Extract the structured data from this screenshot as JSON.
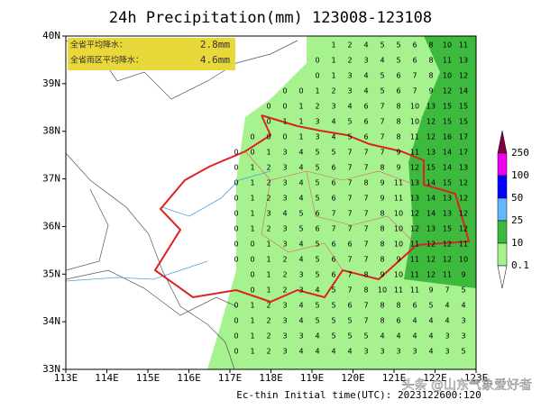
{
  "title": "24h Precipitation(mm) 123008-123108",
  "info": {
    "row1_label": "全省平均降水：",
    "row1_value": "2.8mm",
    "row2_label": "全省雨区平均降水：",
    "row2_value": "4.6mm"
  },
  "x_ticks": [
    "113E",
    "114E",
    "115E",
    "116E",
    "117E",
    "118E",
    "119E",
    "120E",
    "121E",
    "122E",
    "123E"
  ],
  "y_ticks": [
    "40N",
    "39N",
    "38N",
    "37N",
    "36N",
    "35N",
    "34N",
    "33N"
  ],
  "legend": {
    "levels": [
      {
        "label": "250",
        "color": "#f000f0"
      },
      {
        "label": "100",
        "color": "#0000ff"
      },
      {
        "label": "50",
        "color": "#61b8ff"
      },
      {
        "label": "25",
        "color": "#3dba3d"
      },
      {
        "label": "10",
        "color": "#a6f28f"
      },
      {
        "label": "0.1",
        "color": "#ffffff"
      }
    ],
    "top_color": "#800040"
  },
  "grid": {
    "rows": [
      [
        null,
        null,
        null,
        null,
        null,
        null,
        1,
        2,
        4,
        5,
        5,
        6,
        8,
        10,
        11
      ],
      [
        null,
        null,
        null,
        null,
        null,
        0,
        1,
        2,
        3,
        4,
        5,
        6,
        8,
        11,
        13
      ],
      [
        null,
        null,
        null,
        null,
        null,
        0,
        1,
        3,
        4,
        5,
        6,
        7,
        8,
        10,
        12
      ],
      [
        null,
        null,
        null,
        0,
        0,
        1,
        2,
        3,
        4,
        5,
        6,
        7,
        9,
        12,
        14
      ],
      [
        null,
        null,
        0,
        0,
        1,
        2,
        3,
        4,
        6,
        7,
        8,
        10,
        13,
        15,
        15
      ],
      [
        null,
        null,
        0,
        1,
        1,
        3,
        4,
        5,
        6,
        7,
        8,
        10,
        12,
        15,
        15
      ],
      [
        null,
        0,
        0,
        0,
        1,
        3,
        4,
        5,
        6,
        7,
        8,
        11,
        12,
        16,
        17
      ],
      [
        0,
        0,
        1,
        3,
        4,
        5,
        5,
        7,
        7,
        7,
        9,
        11,
        13,
        14,
        17
      ],
      [
        0,
        1,
        2,
        3,
        4,
        5,
        6,
        7,
        7,
        8,
        9,
        12,
        15,
        14,
        13
      ],
      [
        0,
        1,
        2,
        3,
        4,
        5,
        6,
        7,
        8,
        9,
        11,
        13,
        14,
        15,
        12
      ],
      [
        0,
        1,
        2,
        3,
        4,
        5,
        6,
        7,
        7,
        9,
        11,
        13,
        14,
        13,
        12
      ],
      [
        0,
        1,
        3,
        4,
        5,
        6,
        7,
        7,
        7,
        8,
        10,
        12,
        14,
        13,
        12
      ],
      [
        0,
        1,
        2,
        3,
        5,
        6,
        7,
        7,
        7,
        8,
        10,
        12,
        13,
        15,
        12
      ],
      [
        0,
        0,
        1,
        3,
        4,
        5,
        6,
        6,
        7,
        8,
        10,
        11,
        12,
        12,
        11
      ],
      [
        0,
        0,
        1,
        2,
        4,
        5,
        6,
        7,
        7,
        8,
        9,
        11,
        12,
        12,
        10
      ],
      [
        null,
        0,
        1,
        2,
        3,
        5,
        6,
        7,
        8,
        9,
        10,
        11,
        12,
        11,
        9
      ],
      [
        null,
        0,
        1,
        2,
        3,
        4,
        5,
        7,
        8,
        10,
        11,
        11,
        9,
        7,
        5
      ],
      [
        0,
        1,
        2,
        3,
        4,
        5,
        5,
        6,
        7,
        8,
        8,
        6,
        5,
        4,
        4
      ],
      [
        0,
        1,
        2,
        3,
        4,
        5,
        5,
        5,
        7,
        8,
        6,
        4,
        4,
        4,
        3
      ],
      [
        0,
        1,
        2,
        3,
        3,
        4,
        5,
        5,
        5,
        4,
        4,
        4,
        4,
        3,
        3
      ],
      [
        0,
        1,
        2,
        3,
        4,
        4,
        4,
        4,
        3,
        3,
        3,
        3,
        4,
        3,
        5
      ]
    ]
  },
  "footer": "Ec-thin    Initial time(UTC): 2023122600:120",
  "watermark": "头条 @山东气象爱好者"
}
